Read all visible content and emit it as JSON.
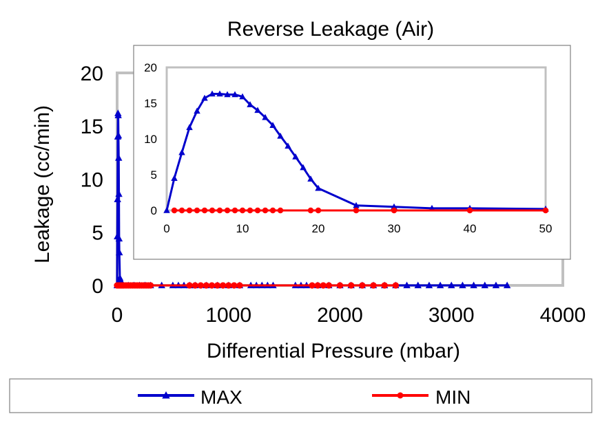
{
  "chart_data": [
    {
      "id": "main",
      "type": "line",
      "title": "Reverse Leakage (Air)",
      "xlabel": "Differential Pressure (mbar)",
      "ylabel": "Leakage (cc/min)",
      "xlim": [
        0,
        4000
      ],
      "ylim": [
        0,
        20
      ],
      "xticks": [
        0,
        1000,
        2000,
        3000,
        4000
      ],
      "yticks": [
        0,
        5,
        10,
        15,
        20
      ],
      "grid": false,
      "legend": "bottom",
      "series": [
        {
          "name": "MAX",
          "color": "#0000cc",
          "marker": "triangle",
          "x": [
            0,
            2,
            4,
            6,
            8,
            10,
            12,
            14,
            16,
            18,
            20,
            25,
            30,
            35,
            40,
            50,
            100,
            150,
            200,
            250,
            300,
            400,
            500,
            550,
            600,
            650,
            700,
            800,
            900,
            1000,
            1100,
            1200,
            1250,
            1300,
            1350,
            1400,
            1600,
            1650,
            1700,
            1800,
            1900,
            2000,
            2100,
            2200,
            2300,
            2400,
            2500,
            2600,
            2700,
            2800,
            2900,
            3000,
            3100,
            3200,
            3300,
            3400,
            3500
          ],
          "y": [
            0,
            4.6,
            8.1,
            14.0,
            16.2,
            16.0,
            14.1,
            12.0,
            8.6,
            4.4,
            3.1,
            0.7,
            0.5,
            0.3,
            0.2,
            0.1,
            0,
            0,
            0,
            0,
            0,
            0,
            0,
            0,
            0,
            0,
            0,
            0,
            0,
            0,
            0,
            0,
            0,
            0,
            0,
            0,
            0,
            0,
            0,
            0,
            0,
            0,
            0,
            0,
            0,
            0,
            0,
            0,
            0,
            0,
            0,
            0,
            0,
            0,
            0,
            0,
            0
          ]
        },
        {
          "name": "MIN",
          "color": "#ff0000",
          "marker": "circle",
          "x": [
            0,
            10,
            20,
            30,
            40,
            50,
            60,
            80,
            100,
            120,
            140,
            160,
            180,
            200,
            220,
            240,
            260,
            280,
            300,
            650,
            700,
            750,
            800,
            850,
            900,
            950,
            1000,
            1050,
            1100,
            1750,
            1800,
            1850,
            1900,
            2000,
            2100,
            2200,
            2300,
            2400,
            2500
          ],
          "y": [
            0,
            0,
            0,
            0,
            0,
            0,
            0,
            0,
            0,
            0,
            0,
            0,
            0,
            0,
            0,
            0,
            0,
            0,
            0,
            0,
            0,
            0,
            0,
            0,
            0,
            0,
            0,
            0,
            0,
            0,
            0,
            0,
            0,
            0,
            0,
            0,
            0,
            0,
            0
          ]
        }
      ]
    },
    {
      "id": "inset",
      "type": "line",
      "xlim": [
        0,
        50
      ],
      "ylim": [
        0,
        20
      ],
      "xticks": [
        0,
        10,
        20,
        30,
        40,
        50
      ],
      "yticks": [
        0,
        5,
        10,
        15,
        20
      ],
      "grid": false,
      "series": [
        {
          "name": "MAX",
          "color": "#0000cc",
          "marker": "triangle",
          "x": [
            0,
            1,
            2,
            3,
            4,
            5,
            6,
            7,
            8,
            9,
            10,
            11,
            12,
            13,
            14,
            15,
            16,
            17,
            18,
            19,
            20,
            25,
            30,
            35,
            40,
            50
          ],
          "y": [
            0,
            4.5,
            8.1,
            11.6,
            13.9,
            15.7,
            16.3,
            16.3,
            16.2,
            16.2,
            15.9,
            14.8,
            14.0,
            13.0,
            11.9,
            10.4,
            9.0,
            7.5,
            6.0,
            4.4,
            3.1,
            0.7,
            0.5,
            0.3,
            0.3,
            0.2
          ]
        },
        {
          "name": "MIN",
          "color": "#ff0000",
          "marker": "circle",
          "x": [
            1,
            2,
            3,
            4,
            5,
            6,
            7,
            8,
            9,
            10,
            11,
            12,
            13,
            14,
            15,
            19,
            20,
            25,
            30,
            40,
            50
          ],
          "y": [
            0,
            0,
            0,
            0,
            0,
            0,
            0,
            0,
            0,
            0,
            0,
            0,
            0,
            0,
            0,
            0,
            0,
            0,
            0,
            0,
            0
          ]
        }
      ]
    }
  ],
  "legend": {
    "entries": [
      {
        "label": "MAX",
        "color": "#0000cc",
        "marker": "triangle"
      },
      {
        "label": "MIN",
        "color": "#ff0000",
        "marker": "circle"
      }
    ]
  }
}
